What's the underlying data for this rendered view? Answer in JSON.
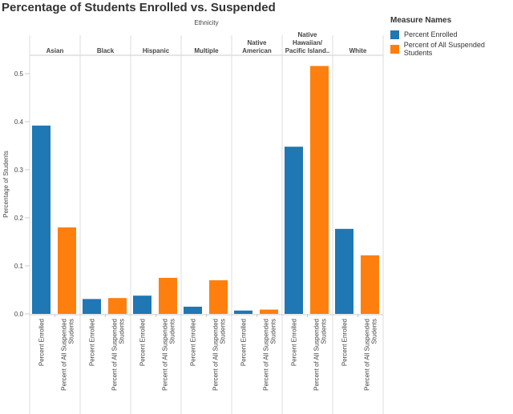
{
  "chart_data": {
    "type": "bar",
    "title": "Percentage of Students Enrolled vs. Suspended",
    "column_header": "Ethnicity",
    "ylabel": "Percentage of Students",
    "ylim": [
      0,
      0.53
    ],
    "yticks": [
      "0.0",
      "0.1",
      "0.2",
      "0.3",
      "0.4",
      "0.5"
    ],
    "grid": false,
    "legend_position": "right",
    "legend_title": "Measure Names",
    "categories": [
      "Asian",
      "Black",
      "Hispanic",
      "Multiple",
      "Native American",
      "Native Hawaiian/ Pacific Island..",
      "White"
    ],
    "series": [
      {
        "name": "Percent Enrolled",
        "color": "#1f77b4",
        "values": [
          0.392,
          0.031,
          0.038,
          0.015,
          0.007,
          0.348,
          0.177
        ]
      },
      {
        "name": "Percent of All Suspended Students",
        "color": "#ff7f0e",
        "values": [
          0.18,
          0.033,
          0.075,
          0.07,
          0.009,
          0.516,
          0.122
        ]
      }
    ],
    "x_tick_labels": [
      "Percent Enrolled",
      "Percent of All Suspended Students"
    ]
  }
}
